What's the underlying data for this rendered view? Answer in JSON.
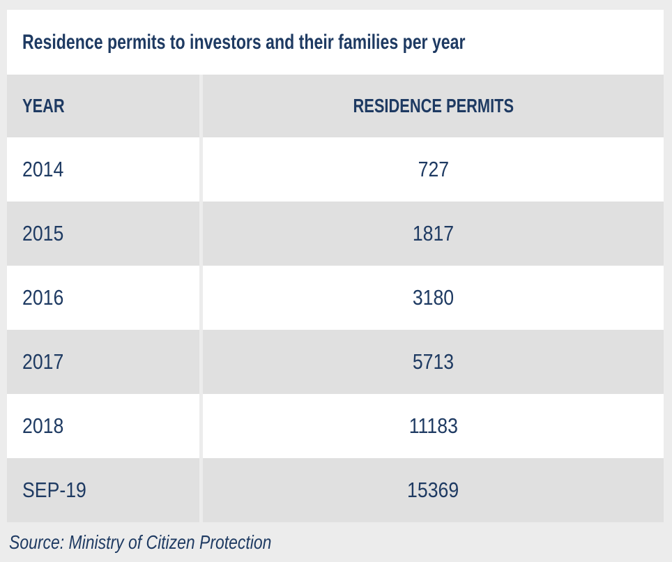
{
  "title": "Residence permits to investors and their families per year",
  "table": {
    "columns": [
      "YEAR",
      "RESIDENCE PERMITS"
    ],
    "rows": [
      {
        "year": "2014",
        "permits": "727"
      },
      {
        "year": "2015",
        "permits": "1817"
      },
      {
        "year": "2016",
        "permits": "3180"
      },
      {
        "year": "2017",
        "permits": "5713"
      },
      {
        "year": "2018",
        "permits": "11183"
      },
      {
        "year": "SEP-19",
        "permits": "15369"
      }
    ]
  },
  "source": "Source: Ministry of Citizen Protection",
  "colors": {
    "text_navy": "#1e3a62",
    "row_grey": "#e0e0e0",
    "row_white": "#ffffff",
    "page_background": "#ececec"
  },
  "chart_data": {
    "type": "table",
    "title": "Residence permits to investors and their families per year",
    "columns": [
      "YEAR",
      "RESIDENCE PERMITS"
    ],
    "categories": [
      "2014",
      "2015",
      "2016",
      "2017",
      "2018",
      "SEP-19"
    ],
    "values": [
      727,
      1817,
      3180,
      5713,
      11183,
      15369
    ],
    "source": "Source: Ministry of Citizen Protection"
  }
}
